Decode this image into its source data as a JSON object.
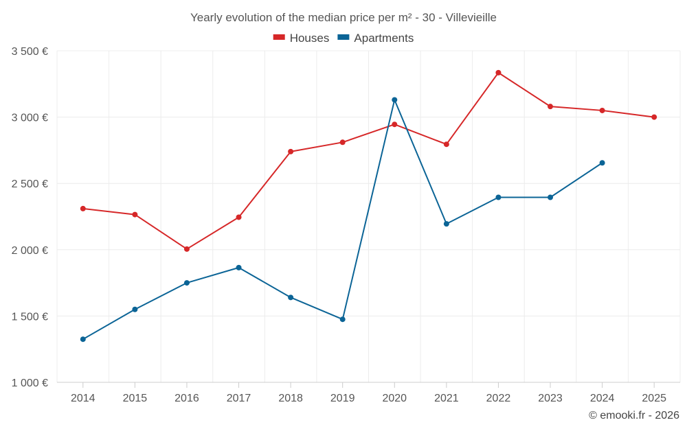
{
  "chart_data": {
    "type": "line",
    "title": "Yearly evolution of the median price per m² - 30 - Villevieille",
    "xlabel": "",
    "ylabel": "",
    "categories": [
      "2014",
      "2015",
      "2016",
      "2017",
      "2018",
      "2019",
      "2020",
      "2021",
      "2022",
      "2023",
      "2024",
      "2025"
    ],
    "ylim": [
      1000,
      3500
    ],
    "yticks": [
      1000,
      1500,
      2000,
      2500,
      3000,
      3500
    ],
    "ytick_labels": [
      "1 000 €",
      "1 500 €",
      "2 000 €",
      "2 500 €",
      "3 000 €",
      "3 500 €"
    ],
    "grid": true,
    "legend_position": "top-center",
    "series": [
      {
        "name": "Houses",
        "color": "#d62728",
        "values": [
          2310,
          2265,
          2005,
          2245,
          2740,
          2810,
          2945,
          2795,
          3335,
          3080,
          3050,
          3000
        ]
      },
      {
        "name": "Apartments",
        "color": "#0b6496",
        "values": [
          1325,
          1550,
          1750,
          1865,
          1640,
          1475,
          3130,
          2195,
          2395,
          2395,
          2655,
          null
        ]
      }
    ],
    "credit": "© emooki.fr - 2026"
  }
}
